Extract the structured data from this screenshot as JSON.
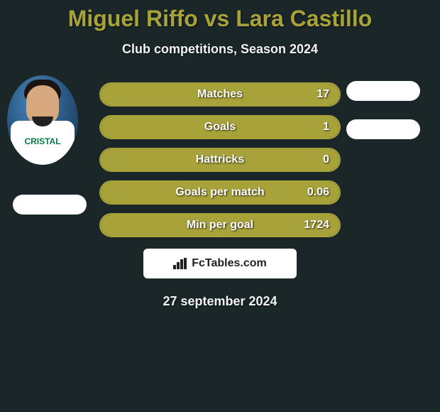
{
  "title": "Miguel Riffo vs Lara Castillo",
  "subtitle": "Club competitions, Season 2024",
  "colors": {
    "accent": "#a8a23a",
    "background": "#1a2628",
    "pill": "#ffffff"
  },
  "player_left": {
    "jersey_text": "CRISTAL"
  },
  "stats": {
    "rows": [
      {
        "label": "Matches",
        "value": "17",
        "fill_pct": 100
      },
      {
        "label": "Goals",
        "value": "1",
        "fill_pct": 100
      },
      {
        "label": "Hattricks",
        "value": "0",
        "fill_pct": 100
      },
      {
        "label": "Goals per match",
        "value": "0.06",
        "fill_pct": 100
      },
      {
        "label": "Min per goal",
        "value": "1724",
        "fill_pct": 100
      }
    ]
  },
  "logo_text": "FcTables.com",
  "date": "27 september 2024"
}
